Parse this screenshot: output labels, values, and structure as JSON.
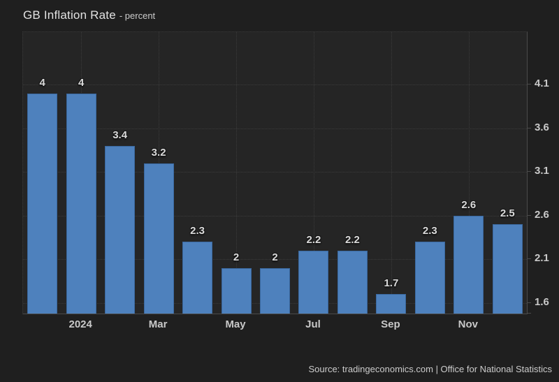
{
  "header": {
    "title": "GB Inflation Rate",
    "subtitle": "- percent"
  },
  "source": {
    "text": "Source: tradingeconomics.com | Office for National Statistics"
  },
  "colors": {
    "page_bg": "#1f1f1f",
    "plot_bg": "#252525",
    "grid": "#3b3b3b",
    "axis": "#4a4a4a",
    "bar": "#4e81bd",
    "bar_border": "#3a689f",
    "title": "#e2e2e2",
    "subtitle": "#cccccc",
    "tick_label": "#c9c9c9",
    "value_label": "#dadada",
    "source": "#cccccc"
  },
  "chart_data": {
    "type": "bar",
    "title": "GB Inflation Rate",
    "subtitle": "- percent",
    "ylabel": "percent",
    "grid": "dotted",
    "y_axis_side": "right",
    "ylim": [
      1.48,
      4.7
    ],
    "bars": [
      {
        "value": 4,
        "label": "4"
      },
      {
        "value": 4,
        "label": "4"
      },
      {
        "value": 3.4,
        "label": "3.4"
      },
      {
        "value": 3.2,
        "label": "3.2"
      },
      {
        "value": 2.3,
        "label": "2.3"
      },
      {
        "value": 2,
        "label": "2"
      },
      {
        "value": 2,
        "label": "2"
      },
      {
        "value": 2.2,
        "label": "2.2"
      },
      {
        "value": 2.2,
        "label": "2.2"
      },
      {
        "value": 1.7,
        "label": "1.7"
      },
      {
        "value": 2.3,
        "label": "2.3"
      },
      {
        "value": 2.6,
        "label": "2.6"
      },
      {
        "value": 2.5,
        "label": "2.5"
      }
    ],
    "x_ticks": [
      {
        "label": "2024",
        "bar_index": 1
      },
      {
        "label": "Mar",
        "bar_index": 3
      },
      {
        "label": "May",
        "bar_index": 5
      },
      {
        "label": "Jul",
        "bar_index": 7
      },
      {
        "label": "Sep",
        "bar_index": 9
      },
      {
        "label": "Nov",
        "bar_index": 11
      }
    ],
    "y_ticks": [
      {
        "value": 1.6,
        "label": "1.6"
      },
      {
        "value": 2.1,
        "label": "2.1"
      },
      {
        "value": 2.6,
        "label": "2.6"
      },
      {
        "value": 3.1,
        "label": "3.1"
      },
      {
        "value": 3.6,
        "label": "3.6"
      },
      {
        "value": 4.1,
        "label": "4.1"
      }
    ]
  }
}
